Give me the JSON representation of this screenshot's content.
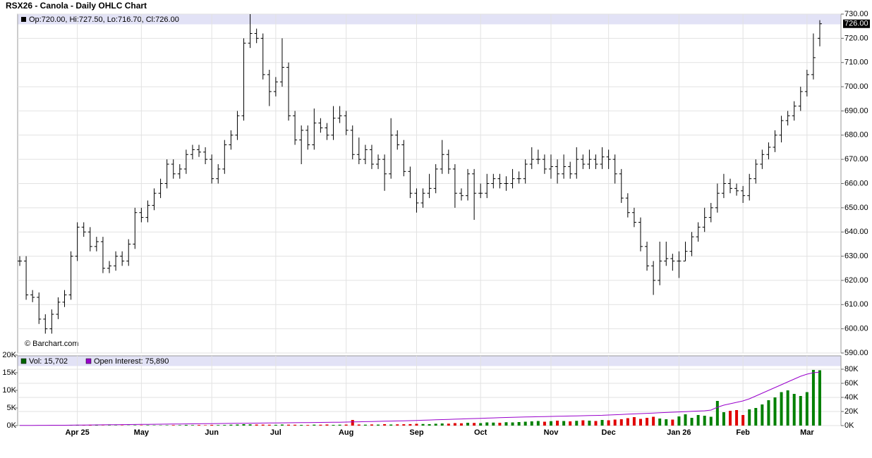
{
  "chart_data": [
    {
      "type": "ohlc",
      "title": "RSX26 - Canola - Daily OHLC Chart",
      "legend": "Op:720.00, Hi:727.50, Lo:716.70, Cl:726.00",
      "watermark": "© Barchart.com",
      "color": "#000000",
      "grid": true,
      "ylim": [
        590,
        730
      ],
      "yticks": [
        {
          "value": 590,
          "label": "590.00"
        },
        {
          "value": 600,
          "label": "600.00"
        },
        {
          "value": 610,
          "label": "610.00"
        },
        {
          "value": 620,
          "label": "620.00"
        },
        {
          "value": 630,
          "label": "630.00"
        },
        {
          "value": 640,
          "label": "640.00"
        },
        {
          "value": 650,
          "label": "650.00"
        },
        {
          "value": 660,
          "label": "660.00"
        },
        {
          "value": 670,
          "label": "670.00"
        },
        {
          "value": 680,
          "label": "680.00"
        },
        {
          "value": 690,
          "label": "690.00"
        },
        {
          "value": 700,
          "label": "700.00"
        },
        {
          "value": 710,
          "label": "710.00"
        },
        {
          "value": 720,
          "label": "720.00"
        },
        {
          "value": 730,
          "label": "730.00"
        }
      ],
      "last_price_label": {
        "value": 726,
        "label": "726.00"
      },
      "categories": [
        null,
        null,
        null,
        null,
        null,
        null,
        null,
        null,
        null,
        "Apr 25",
        null,
        null,
        null,
        null,
        null,
        null,
        null,
        null,
        null,
        "May",
        null,
        null,
        null,
        null,
        null,
        null,
        null,
        null,
        null,
        null,
        "Jun",
        null,
        null,
        null,
        null,
        null,
        null,
        null,
        null,
        null,
        "Jul",
        null,
        null,
        null,
        null,
        null,
        null,
        null,
        null,
        null,
        null,
        "Aug",
        null,
        null,
        null,
        null,
        null,
        null,
        null,
        null,
        null,
        null,
        "Sep",
        null,
        null,
        null,
        null,
        null,
        null,
        null,
        null,
        null,
        "Oct",
        null,
        null,
        null,
        null,
        null,
        null,
        null,
        null,
        null,
        null,
        "Nov",
        null,
        null,
        null,
        null,
        null,
        null,
        null,
        null,
        "Dec",
        null,
        null,
        null,
        null,
        null,
        null,
        null,
        null,
        null,
        null,
        "Jan 26",
        null,
        null,
        null,
        null,
        null,
        null,
        null,
        null,
        null,
        "Feb",
        null,
        null,
        null,
        null,
        null,
        null,
        null,
        null,
        null,
        "Mar",
        null,
        null
      ],
      "open": [
        628,
        628,
        614,
        613,
        604,
        600,
        606,
        611,
        614,
        630,
        642,
        640,
        634,
        636,
        625,
        626,
        630,
        628,
        635,
        648,
        646,
        651,
        656,
        660,
        668,
        664,
        666,
        672,
        674,
        673,
        670,
        662,
        666,
        676,
        680,
        688,
        718,
        722,
        720,
        705,
        698,
        702,
        708,
        688,
        678,
        682,
        676,
        685,
        683,
        680,
        687,
        688,
        682,
        672,
        670,
        674,
        668,
        670,
        664,
        680,
        676,
        665,
        656,
        652,
        656,
        658,
        666,
        672,
        666,
        656,
        655,
        664,
        656,
        656,
        660,
        662,
        660,
        660,
        662,
        662,
        668,
        670,
        670,
        666,
        667,
        664,
        667,
        664,
        670,
        668,
        670,
        668,
        671,
        670,
        664,
        654,
        648,
        644,
        634,
        626,
        620,
        628,
        629,
        628,
        628,
        632,
        638,
        642,
        646,
        650,
        656,
        660,
        658,
        657,
        655,
        662,
        668,
        672,
        675,
        680,
        686,
        688,
        692,
        698,
        705,
        720
      ],
      "high": [
        630,
        630,
        616,
        615,
        606,
        608,
        613,
        616,
        632,
        644,
        644,
        642,
        638,
        638,
        628,
        632,
        632,
        637,
        650,
        650,
        653,
        658,
        662,
        670,
        670,
        668,
        674,
        676,
        676,
        675,
        672,
        668,
        678,
        682,
        690,
        720,
        730,
        724,
        722,
        707,
        704,
        720,
        710,
        690,
        684,
        684,
        691,
        687,
        685,
        692,
        692,
        690,
        684,
        679,
        676,
        676,
        672,
        672,
        687,
        682,
        678,
        667,
        658,
        658,
        664,
        668,
        678,
        674,
        668,
        658,
        666,
        666,
        660,
        664,
        664,
        664,
        663,
        666,
        665,
        670,
        675,
        674,
        672,
        672,
        670,
        672,
        669,
        675,
        672,
        674,
        672,
        675,
        674,
        672,
        666,
        656,
        650,
        646,
        636,
        628,
        636,
        636,
        631,
        632,
        636,
        640,
        644,
        650,
        652,
        660,
        664,
        662,
        660,
        659,
        664,
        670,
        674,
        677,
        682,
        688,
        690,
        694,
        700,
        707,
        722,
        727.5
      ],
      "low": [
        626,
        612,
        611,
        602,
        598,
        598,
        604,
        609,
        612,
        628,
        638,
        632,
        632,
        623,
        623,
        624,
        626,
        626,
        633,
        644,
        644,
        649,
        654,
        658,
        662,
        662,
        664,
        670,
        671,
        668,
        660,
        660,
        664,
        674,
        678,
        686,
        716,
        718,
        703,
        692,
        696,
        700,
        686,
        676,
        668,
        674,
        674,
        681,
        678,
        678,
        685,
        680,
        670,
        668,
        668,
        666,
        666,
        657,
        662,
        674,
        663,
        654,
        648,
        650,
        654,
        656,
        664,
        664,
        650,
        653,
        653,
        645,
        654,
        654,
        658,
        658,
        657,
        658,
        660,
        660,
        666,
        668,
        664,
        662,
        660,
        662,
        662,
        662,
        666,
        666,
        666,
        666,
        666,
        660,
        652,
        646,
        642,
        632,
        624,
        614,
        618,
        626,
        624,
        621,
        628,
        630,
        636,
        640,
        644,
        648,
        654,
        656,
        655,
        652,
        653,
        660,
        666,
        670,
        673,
        677,
        684,
        686,
        690,
        696,
        703,
        716.7
      ],
      "close": [
        628,
        614,
        613,
        604,
        600,
        606,
        611,
        614,
        630,
        642,
        640,
        634,
        636,
        625,
        626,
        630,
        628,
        635,
        648,
        646,
        651,
        656,
        660,
        668,
        664,
        666,
        672,
        674,
        673,
        670,
        662,
        666,
        676,
        680,
        688,
        718,
        722,
        720,
        705,
        698,
        702,
        708,
        688,
        678,
        682,
        676,
        685,
        683,
        680,
        687,
        688,
        682,
        672,
        670,
        674,
        668,
        670,
        664,
        680,
        676,
        665,
        656,
        652,
        656,
        658,
        666,
        672,
        666,
        656,
        655,
        664,
        656,
        656,
        660,
        662,
        660,
        660,
        662,
        662,
        668,
        670,
        670,
        666,
        667,
        664,
        667,
        664,
        670,
        668,
        670,
        668,
        671,
        670,
        664,
        654,
        648,
        644,
        634,
        626,
        620,
        628,
        629,
        628,
        628,
        632,
        638,
        642,
        646,
        650,
        656,
        660,
        658,
        657,
        655,
        662,
        668,
        672,
        675,
        680,
        686,
        688,
        692,
        698,
        705,
        712,
        726
      ]
    },
    {
      "type": "bar",
      "grid": true,
      "ylim": [
        0,
        20000
      ],
      "yticks": [
        {
          "value": 0,
          "label": "0K"
        },
        {
          "value": 5000,
          "label": "5K"
        },
        {
          "value": 10000,
          "label": "10K"
        },
        {
          "value": 15000,
          "label": "15K"
        },
        {
          "value": 20000,
          "label": "20K"
        }
      ],
      "y2lim": [
        0,
        100000
      ],
      "y2ticks": [
        {
          "value": 0,
          "label": "0K"
        },
        {
          "value": 20000,
          "label": "20K"
        },
        {
          "value": 40000,
          "label": "40K"
        },
        {
          "value": 60000,
          "label": "60K"
        },
        {
          "value": 80000,
          "label": "80K"
        }
      ],
      "series": [
        {
          "name": "Vol: 15,702",
          "color": "#006400",
          "up_color": "#008000",
          "down_color": "#e00000",
          "values": [
            50,
            80,
            60,
            40,
            70,
            50,
            60,
            80,
            90,
            100,
            80,
            120,
            90,
            60,
            100,
            80,
            90,
            70,
            110,
            100,
            120,
            100,
            90,
            110,
            150,
            130,
            200,
            150,
            180,
            120,
            200,
            160,
            180,
            250,
            300,
            400,
            350,
            300,
            280,
            250,
            220,
            300,
            260,
            240,
            200,
            180,
            260,
            240,
            300,
            200,
            250,
            280,
            1600,
            300,
            260,
            320,
            280,
            400,
            300,
            350,
            380,
            420,
            500,
            450,
            400,
            520,
            600,
            550,
            700,
            650,
            800,
            750,
            700,
            900,
            850,
            800,
            950,
            900,
            1000,
            1100,
            1200,
            1300,
            1100,
            1250,
            1400,
            1300,
            1200,
            1350,
            1500,
            1400,
            1300,
            1600,
            1500,
            1700,
            1800,
            2100,
            2400,
            1900,
            2200,
            2500,
            2000,
            1800,
            1700,
            2600,
            3200,
            2200,
            3000,
            2800,
            2500,
            7000,
            3800,
            4200,
            4400,
            3000,
            4600,
            5000,
            6000,
            7200,
            8000,
            9500,
            10000,
            9000,
            8400,
            9500,
            15800,
            15702
          ]
        },
        {
          "name": "Open Interest: 75,890",
          "color": "#9900cc",
          "axis": "y2",
          "type": "line",
          "values": [
            200,
            250,
            300,
            350,
            400,
            450,
            500,
            550,
            600,
            700,
            800,
            900,
            1000,
            1100,
            1200,
            1300,
            1400,
            1500,
            1600,
            1700,
            1800,
            1900,
            2000,
            2100,
            2200,
            2300,
            2400,
            2500,
            2600,
            2700,
            2800,
            2900,
            3000,
            3100,
            3200,
            3300,
            3400,
            3500,
            3600,
            3700,
            3800,
            3900,
            4000,
            4100,
            4200,
            4300,
            4400,
            4500,
            4600,
            4700,
            4800,
            5000,
            5200,
            5400,
            5600,
            5800,
            6000,
            6200,
            6400,
            6600,
            6800,
            7000,
            7300,
            7600,
            7900,
            8200,
            8500,
            8800,
            9100,
            9400,
            9700,
            10000,
            10300,
            10600,
            10900,
            11200,
            11500,
            11800,
            12000,
            12200,
            12400,
            12600,
            12800,
            13000,
            13200,
            13400,
            13600,
            13800,
            14000,
            14200,
            14400,
            14600,
            15000,
            15400,
            15800,
            16200,
            16600,
            17000,
            17400,
            17800,
            18200,
            18600,
            19000,
            19400,
            19800,
            20200,
            20600,
            21000,
            22000,
            26000,
            29000,
            31000,
            33000,
            35000,
            38000,
            42000,
            46000,
            50000,
            54000,
            58000,
            62000,
            66000,
            70000,
            73000,
            75000,
            75890
          ]
        }
      ]
    }
  ]
}
